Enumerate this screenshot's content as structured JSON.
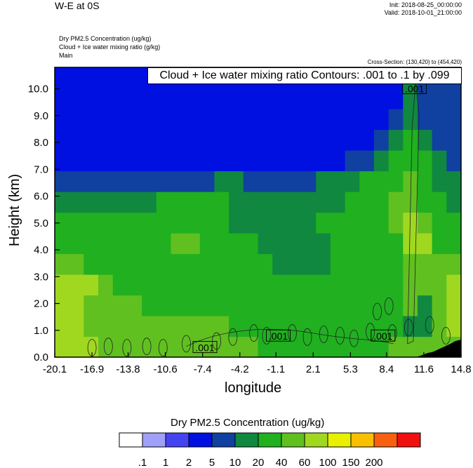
{
  "header": {
    "title": "W-E at 0S",
    "init": "Init: 2018-08-25_00:00:00",
    "valid": "Valid: 2018-10-01_21:00:00",
    "fields": [
      "Dry PM2.5 Concentration   (ug/kg)",
      "Cloud + Ice water mixing ratio   (g/kg)",
      "Main"
    ],
    "cross_section": "Cross-Section: (130,420) to (454,420)"
  },
  "contour_label": "Cloud + Ice water mixing ratio Contours: .001 to .1 by .099",
  "chart_data": {
    "type": "heatmap",
    "title": "W-E at 0S",
    "xlabel": "longitude",
    "ylabel": "Height (km)",
    "x_ticks": [
      "-20.1",
      "-16.9",
      "-13.8",
      "-10.6",
      "-7.4",
      "-4.2",
      "-1.1",
      "2.1",
      "5.3",
      "8.4",
      "11.6",
      "14.8"
    ],
    "x_tick_values": [
      -20.1,
      -16.9,
      -13.8,
      -10.6,
      -7.4,
      -4.2,
      -1.1,
      2.1,
      5.3,
      8.4,
      11.6,
      14.8
    ],
    "y_ticks": [
      "0.0",
      "1.0",
      "2.0",
      "3.0",
      "4.0",
      "5.0",
      "6.0",
      "7.0",
      "8.0",
      "9.0",
      "10.0"
    ],
    "y_tick_values": [
      0,
      1,
      2,
      3,
      4,
      5,
      6,
      7,
      8,
      9,
      10
    ],
    "xlim": [
      -20.1,
      14.8
    ],
    "ylim": [
      0,
      10.8
    ],
    "contour_labels": [
      {
        "text": ".001",
        "x": -7.2,
        "y": 0.35
      },
      {
        "text": ".001",
        "x": -0.9,
        "y": 0.78
      },
      {
        "text": ".001",
        "x": 8.1,
        "y": 0.78
      },
      {
        "text": ".001",
        "x": 10.8,
        "y": 10.0
      }
    ],
    "colorbar": {
      "title": "Dry PM2.5 Concentration  (ug/kg)",
      "labels": [
        ".1",
        "1",
        "2",
        "5",
        "10",
        "20",
        "40",
        "60",
        "100",
        "150",
        "200"
      ],
      "colors": [
        "#ffffff",
        "#a0a0f8",
        "#4444f0",
        "#0010e0",
        "#1040a0",
        "#108840",
        "#20b020",
        "#60c020",
        "#a0d820",
        "#e8f000",
        "#f8c000",
        "#f86010",
        "#f01010"
      ]
    },
    "pm25_grid": [
      [
        60,
        60,
        60,
        50,
        50,
        45,
        45,
        40,
        40,
        40,
        40,
        40,
        40,
        40,
        30,
        30,
        30,
        30,
        30,
        30,
        30,
        30,
        30,
        40,
        40,
        40,
        40,
        40
      ],
      [
        60,
        60,
        55,
        55,
        50,
        50,
        45,
        45,
        45,
        45,
        40,
        40,
        35,
        35,
        30,
        30,
        30,
        30,
        30,
        30,
        30,
        30,
        30,
        30,
        15,
        15,
        40,
        60
      ],
      [
        60,
        60,
        55,
        50,
        45,
        40,
        35,
        35,
        35,
        35,
        35,
        35,
        30,
        30,
        25,
        25,
        25,
        20,
        20,
        20,
        25,
        25,
        20,
        25,
        40,
        15,
        50,
        60
      ],
      [
        70,
        70,
        60,
        45,
        35,
        30,
        30,
        30,
        30,
        30,
        30,
        30,
        30,
        30,
        25,
        25,
        20,
        20,
        20,
        20,
        25,
        25,
        20,
        30,
        40,
        50,
        50,
        60
      ],
      [
        40,
        40,
        35,
        30,
        25,
        25,
        25,
        30,
        35,
        35,
        30,
        30,
        25,
        25,
        20,
        15,
        15,
        15,
        15,
        20,
        20,
        20,
        25,
        30,
        45,
        50,
        40,
        40
      ],
      [
        25,
        25,
        25,
        25,
        25,
        25,
        25,
        30,
        40,
        40,
        30,
        30,
        25,
        20,
        15,
        15,
        15,
        15,
        15,
        20,
        20,
        20,
        25,
        35,
        60,
        60,
        35,
        35
      ],
      [
        25,
        25,
        25,
        25,
        25,
        25,
        25,
        25,
        25,
        25,
        25,
        20,
        15,
        15,
        12,
        12,
        12,
        15,
        20,
        20,
        20,
        25,
        30,
        45,
        80,
        40,
        30,
        25
      ],
      [
        12,
        12,
        12,
        15,
        15,
        15,
        15,
        20,
        20,
        20,
        20,
        20,
        15,
        12,
        10,
        10,
        10,
        12,
        15,
        15,
        20,
        25,
        30,
        40,
        50,
        35,
        25,
        15
      ],
      [
        5,
        5,
        5,
        5,
        5,
        5,
        5,
        5,
        5,
        5,
        8,
        12,
        10,
        8,
        5,
        5,
        5,
        8,
        10,
        12,
        15,
        20,
        25,
        30,
        40,
        25,
        15,
        10
      ],
      [
        4,
        4,
        4,
        4,
        4,
        4,
        4,
        4,
        4,
        4,
        4,
        4,
        4,
        4,
        4,
        4,
        4,
        4,
        4,
        4,
        5,
        8,
        12,
        20,
        30,
        20,
        10,
        8
      ],
      [
        4,
        4,
        4,
        4,
        4,
        4,
        4,
        4,
        4,
        4,
        4,
        4,
        4,
        4,
        4,
        4,
        4,
        4,
        4,
        4,
        4,
        4,
        8,
        12,
        20,
        12,
        8,
        5
      ],
      [
        4,
        4,
        4,
        4,
        4,
        4,
        4,
        4,
        4,
        4,
        4,
        4,
        4,
        4,
        4,
        4,
        4,
        4,
        4,
        4,
        4,
        4,
        4,
        6,
        15,
        8,
        5,
        5
      ],
      [
        4,
        4,
        4,
        4,
        4,
        4,
        4,
        4,
        4,
        4,
        4,
        4,
        4,
        4,
        4,
        4,
        4,
        4,
        4,
        4,
        4,
        4,
        4,
        4,
        12,
        6,
        5,
        5
      ],
      [
        4,
        4,
        4,
        4,
        4,
        4,
        4,
        4,
        4,
        4,
        4,
        4,
        4,
        4,
        4,
        4,
        4,
        4,
        4,
        4,
        4,
        4,
        4,
        4,
        10,
        5,
        5,
        5
      ]
    ]
  }
}
